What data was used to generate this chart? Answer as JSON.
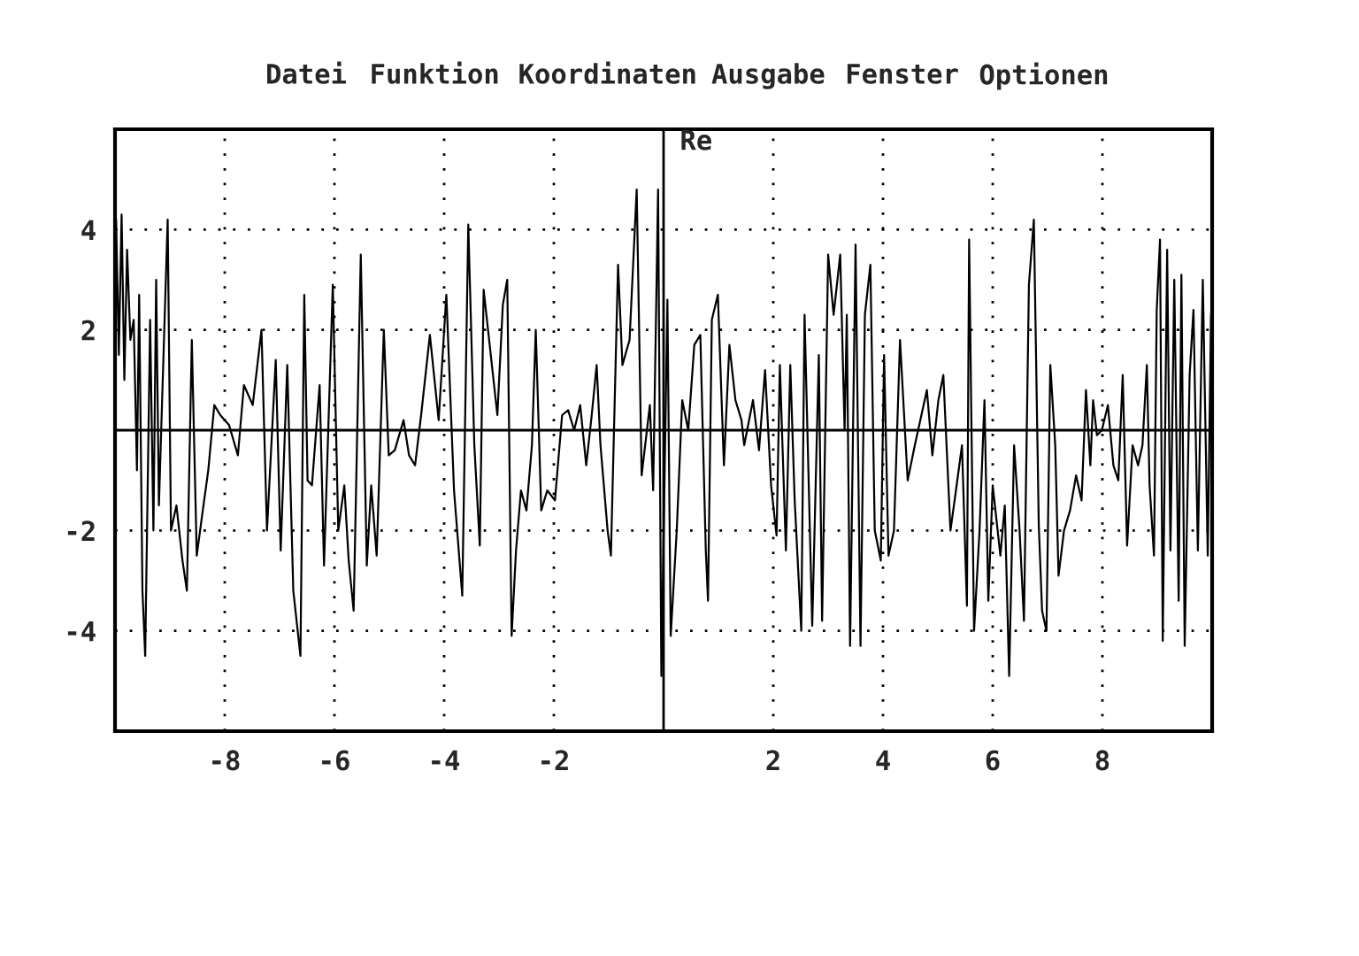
{
  "chart_data": {
    "type": "line",
    "annotations": [
      "Datei",
      "Funktion",
      "Koordinaten",
      "Ausgabe",
      "Fenster",
      "Optionen"
    ],
    "xlim": [
      -10,
      10
    ],
    "ylim": [
      -6,
      6
    ],
    "xticks": [
      -8,
      -6,
      -4,
      -2,
      2,
      4,
      6,
      8
    ],
    "yticks": [
      -4,
      -2,
      2,
      4
    ],
    "grid": true,
    "ref_lines": [
      {
        "axis": "x",
        "value": 0,
        "label": "Re"
      },
      {
        "axis": "y",
        "value": 0
      }
    ],
    "line_style": "solid",
    "marker": "none",
    "series": [
      {
        "color": "#000000",
        "x": [
          -9.98,
          -9.93,
          -9.88,
          -9.83,
          -9.78,
          -9.72,
          -9.66,
          -9.6,
          -9.56,
          -9.5,
          -9.45,
          -9.36,
          -9.3,
          -9.25,
          -9.2,
          -9.04,
          -8.98,
          -8.88,
          -8.77,
          -8.69,
          -8.6,
          -8.51,
          -8.4,
          -8.3,
          -8.19,
          -8.08,
          -7.92,
          -7.76,
          -7.65,
          -7.49,
          -7.33,
          -7.23,
          -7.07,
          -6.98,
          -6.86,
          -6.75,
          -6.62,
          -6.55,
          -6.49,
          -6.41,
          -6.27,
          -6.19,
          -6.03,
          -5.93,
          -5.82,
          -5.74,
          -5.65,
          -5.52,
          -5.41,
          -5.33,
          -5.23,
          -5.1,
          -5.01,
          -4.9,
          -4.74,
          -4.64,
          -4.53,
          -4.42,
          -4.26,
          -4.1,
          -3.96,
          -3.82,
          -3.67,
          -3.56,
          -3.45,
          -3.35,
          -3.28,
          -3.03,
          -2.93,
          -2.85,
          -2.77,
          -2.69,
          -2.6,
          -2.5,
          -2.4,
          -2.33,
          -2.23,
          -2.12,
          -1.98,
          -1.85,
          -1.74,
          -1.63,
          -1.52,
          -1.41,
          -1.31,
          -1.22,
          -1.15,
          -1.02,
          -0.96,
          -0.83,
          -0.75,
          -0.62,
          -0.49,
          -0.4,
          -0.25,
          -0.19,
          -0.1,
          -0.04,
          0.07,
          0.13,
          0.24,
          0.34,
          0.45,
          0.56,
          0.67,
          0.77,
          0.81,
          0.88,
          0.99,
          1.1,
          1.2,
          1.31,
          1.42,
          1.47,
          1.63,
          1.74,
          1.85,
          1.96,
          2.06,
          2.12,
          2.23,
          2.31,
          2.39,
          2.51,
          2.57,
          2.71,
          2.83,
          2.89,
          3.0,
          3.1,
          3.22,
          3.3,
          3.34,
          3.4,
          3.5,
          3.59,
          3.67,
          3.77,
          3.85,
          3.96,
          4.02,
          4.1,
          4.2,
          4.31,
          4.45,
          4.58,
          4.8,
          4.9,
          5.01,
          5.1,
          5.23,
          5.33,
          5.44,
          5.53,
          5.57,
          5.66,
          5.76,
          5.85,
          5.92,
          6.0,
          6.14,
          6.22,
          6.3,
          6.39,
          6.49,
          6.57,
          6.66,
          6.75,
          6.84,
          6.9,
          6.98,
          7.05,
          7.14,
          7.2,
          7.3,
          7.41,
          7.52,
          7.62,
          7.7,
          7.78,
          7.83,
          7.9,
          7.99,
          8.1,
          8.2,
          8.29,
          8.37,
          8.45,
          8.55,
          8.65,
          8.73,
          8.81,
          8.86,
          8.94,
          8.99,
          9.05,
          9.1,
          9.18,
          9.24,
          9.31,
          9.39,
          9.44,
          9.5,
          9.59,
          9.66,
          9.74,
          9.83,
          9.92,
          9.98,
          10.0
        ],
        "values": [
          4.2,
          1.5,
          4.3,
          1.0,
          3.6,
          1.8,
          2.2,
          -0.8,
          2.7,
          -3.2,
          -4.5,
          2.2,
          -2.0,
          3.0,
          -1.5,
          4.2,
          -2.0,
          -1.5,
          -2.6,
          -3.2,
          1.8,
          -2.5,
          -1.6,
          -0.8,
          0.5,
          0.3,
          0.1,
          -0.5,
          0.9,
          0.5,
          2.0,
          -2.0,
          1.4,
          -2.4,
          1.3,
          -3.2,
          -4.5,
          2.7,
          -1.0,
          -1.1,
          0.9,
          -2.7,
          2.9,
          -2.0,
          -1.1,
          -2.6,
          -3.6,
          3.5,
          -2.7,
          -1.1,
          -2.5,
          2.0,
          -0.5,
          -0.4,
          0.2,
          -0.5,
          -0.7,
          0.3,
          1.9,
          0.2,
          2.7,
          -1.2,
          -3.3,
          4.1,
          -0.3,
          -2.3,
          2.8,
          0.3,
          2.5,
          3.0,
          -4.1,
          -2.4,
          -1.2,
          -1.6,
          -0.3,
          2.0,
          -1.6,
          -1.2,
          -1.4,
          0.3,
          0.4,
          0.0,
          0.5,
          -0.7,
          0.3,
          1.3,
          -0.3,
          -2.0,
          -2.5,
          3.3,
          1.3,
          1.8,
          4.8,
          -0.9,
          0.5,
          -1.2,
          4.8,
          -4.9,
          2.6,
          -4.1,
          -2.0,
          0.6,
          0.0,
          1.7,
          1.9,
          -2.4,
          -3.4,
          2.2,
          2.7,
          -0.7,
          1.7,
          0.6,
          0.2,
          -0.3,
          0.6,
          -0.4,
          1.2,
          -1.1,
          -2.1,
          1.3,
          -2.4,
          1.3,
          -1.4,
          -4.0,
          2.3,
          -3.9,
          1.5,
          -3.8,
          3.5,
          2.3,
          3.5,
          0.0,
          2.3,
          -4.3,
          3.7,
          -4.3,
          2.3,
          3.3,
          -2.0,
          -2.6,
          1.5,
          -2.5,
          -2.0,
          1.8,
          -1.0,
          -0.3,
          0.8,
          -0.5,
          0.6,
          1.1,
          -2.0,
          -1.2,
          -0.3,
          -3.5,
          3.8,
          -4.0,
          -2.0,
          0.6,
          -3.4,
          -1.1,
          -2.5,
          -1.5,
          -4.9,
          -0.3,
          -2.0,
          -3.8,
          2.9,
          4.2,
          -1.9,
          -3.6,
          -4.0,
          1.3,
          -0.3,
          -2.9,
          -2.0,
          -1.6,
          -0.9,
          -1.4,
          0.8,
          -0.7,
          0.6,
          -0.1,
          0.0,
          0.5,
          -0.7,
          -1.0,
          1.1,
          -2.3,
          -0.3,
          -0.7,
          -0.3,
          1.3,
          -1.1,
          -2.5,
          2.4,
          3.8,
          -4.2,
          3.6,
          -2.4,
          3.0,
          -3.4,
          3.1,
          -4.3,
          1.1,
          2.4,
          -2.4,
          3.0,
          -2.5,
          2.3,
          0.0
        ]
      }
    ]
  }
}
